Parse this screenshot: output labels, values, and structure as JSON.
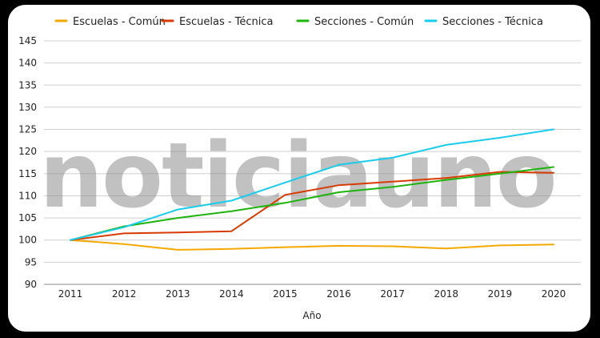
{
  "watermark": "noticiauno",
  "chart_data": {
    "type": "line",
    "xlabel": "Año",
    "ylabel": "",
    "x": [
      "2011",
      "2012",
      "2013",
      "2014",
      "2015",
      "2016",
      "2017",
      "2018",
      "2019",
      "2020"
    ],
    "ylim": [
      90,
      145
    ],
    "yticks": [
      "90",
      "95",
      "100",
      "105",
      "110",
      "115",
      "120",
      "125",
      "130",
      "135",
      "140",
      "145"
    ],
    "grid": true,
    "legend_position": "top",
    "series": [
      {
        "name": "Escuelas - Común",
        "color": "#F5A800",
        "values": [
          100,
          99.1,
          97.8,
          98.0,
          98.4,
          98.7,
          98.6,
          98.1,
          98.8,
          99.0
        ]
      },
      {
        "name": "Escuelas - Técnica",
        "color": "#D83B01",
        "values": [
          100,
          101.5,
          101.7,
          102.0,
          110.2,
          112.4,
          113.2,
          114.0,
          115.4,
          115.2
        ]
      },
      {
        "name": "Secciones - Común",
        "color": "#1DB40C",
        "values": [
          100,
          103.1,
          105.0,
          106.5,
          108.4,
          110.8,
          112.0,
          113.6,
          115.0,
          116.5
        ]
      },
      {
        "name": "Secciones - Técnica",
        "color": "#19CCEE",
        "values": [
          100,
          102.9,
          106.9,
          108.9,
          113.0,
          117.0,
          118.6,
          121.5,
          123.1,
          125.0
        ]
      }
    ]
  }
}
